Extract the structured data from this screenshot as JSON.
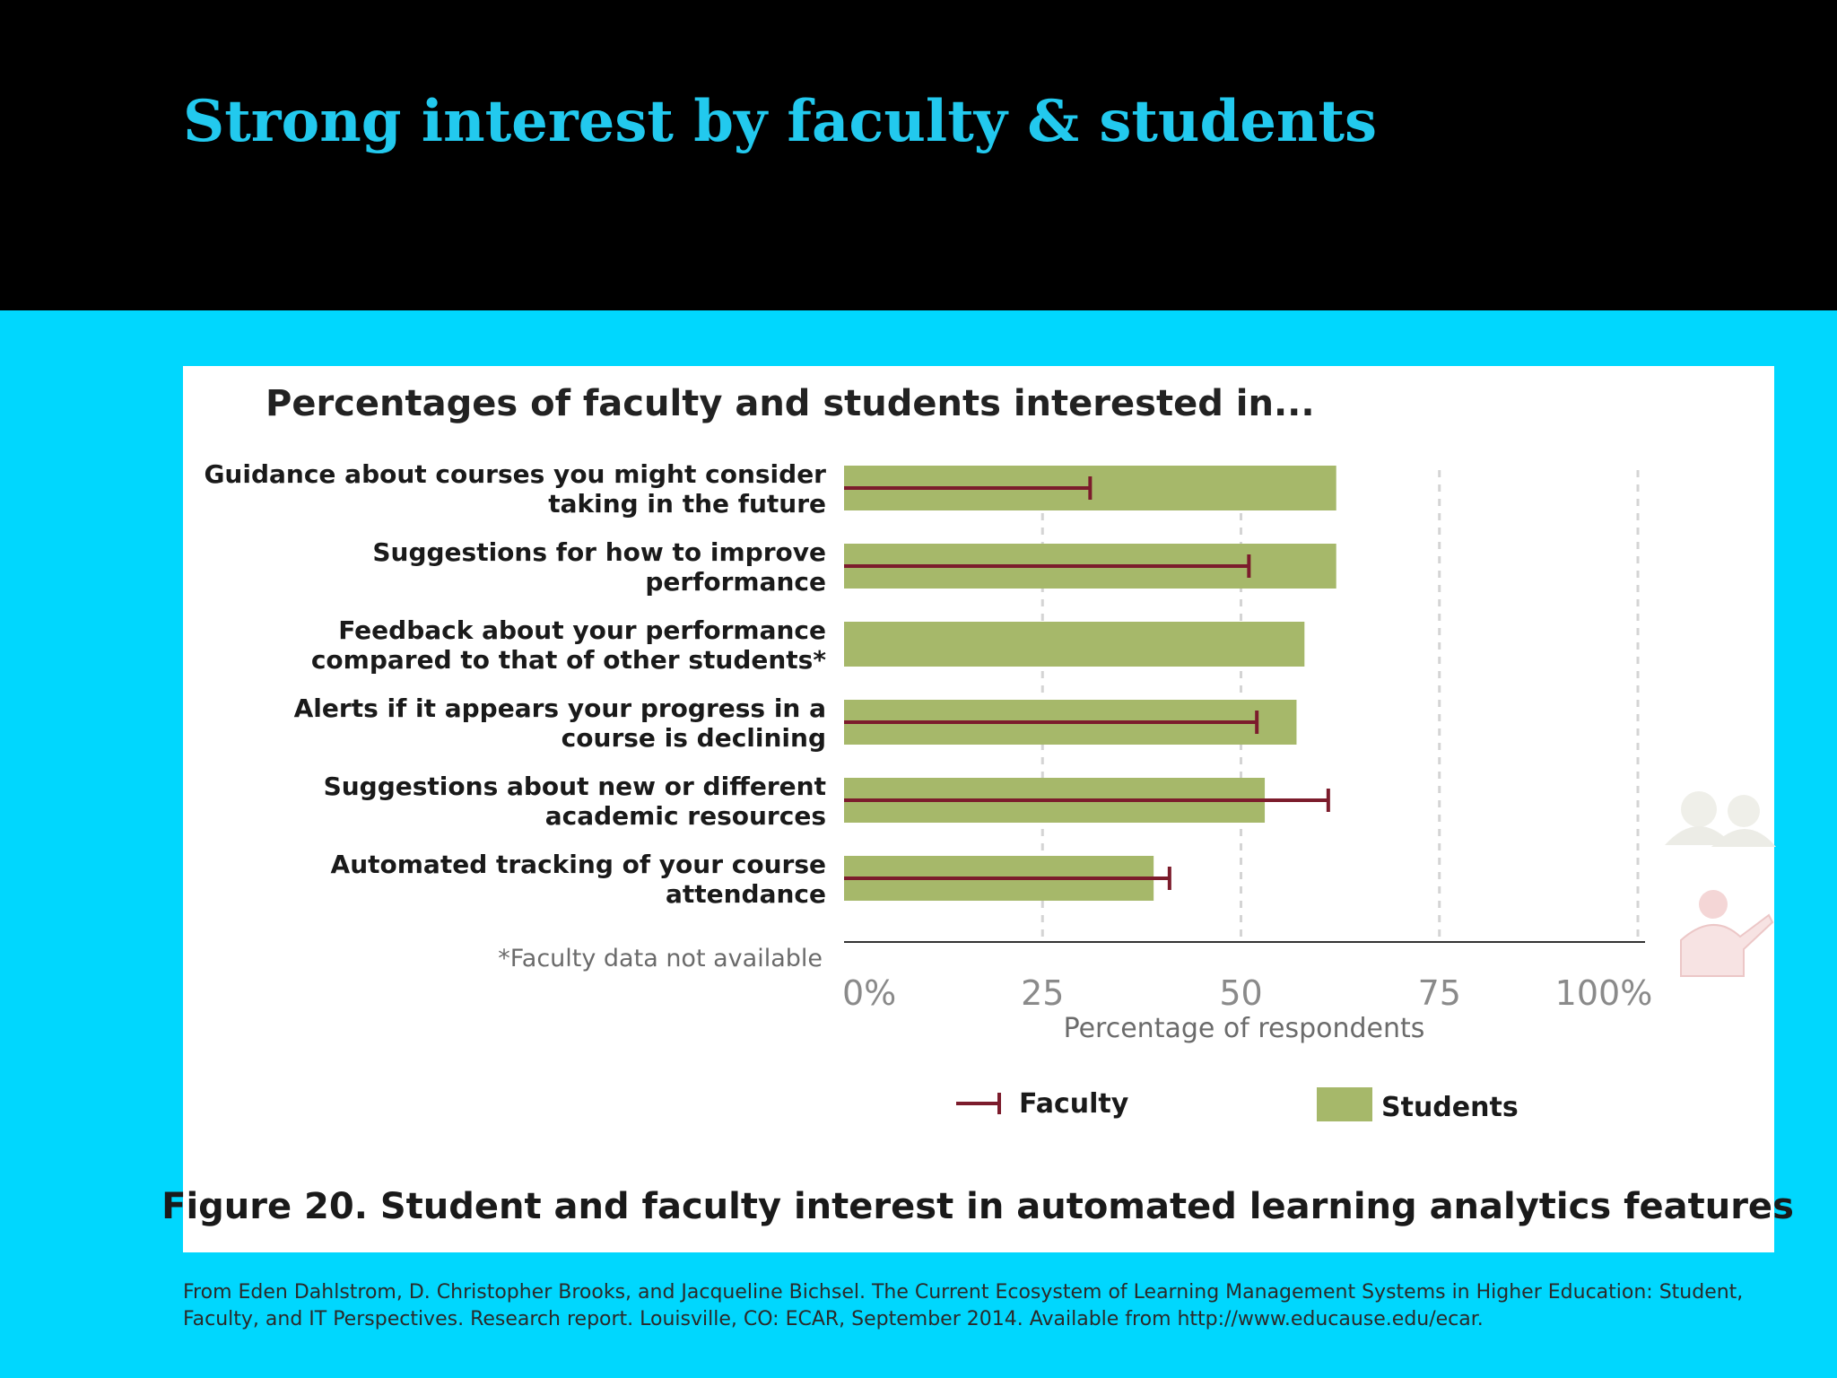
{
  "slide": {
    "title": "Strong interest by faculty & students",
    "citation": "From Eden Dahlstrom, D. Christopher Brooks, and Jacqueline Bichsel. The Current Ecosystem of Learning Management Systems in Higher Education: Student, Faculty, and IT Perspectives. Research report. Louisville, CO: ECAR, September 2014. Available from http://www.educause.edu/ecar.",
    "colors": {
      "top_band": "#000000",
      "bottom_band": "#00d7fe",
      "title": "#22c9ee"
    }
  },
  "chart_data": {
    "type": "bar",
    "orientation": "horizontal",
    "title": "Percentages of faculty and students interested in...",
    "categories": [
      [
        "Guidance about courses you might consider",
        "taking in the future"
      ],
      [
        "Suggestions for how to improve",
        "performance"
      ],
      [
        "Feedback about your performance",
        "compared to that of other students*"
      ],
      [
        "Alerts if it appears your progress in a",
        "course is declining"
      ],
      [
        "Suggestions about new or different",
        "academic resources"
      ],
      [
        "Automated tracking of your course",
        "attendance"
      ]
    ],
    "series": [
      {
        "name": "Students",
        "mark": "bar",
        "color": "#a6b86a",
        "values": [
          62,
          62,
          58,
          57,
          53,
          39
        ]
      },
      {
        "name": "Faculty",
        "mark": "line",
        "color": "#7c1c2c",
        "values": [
          31,
          51,
          null,
          52,
          61,
          41
        ]
      }
    ],
    "xlim": [
      0,
      100
    ],
    "ticks": [
      0,
      25,
      50,
      75,
      100
    ],
    "tick_labels": [
      "0%",
      "25",
      "50",
      "75",
      "100%"
    ],
    "xlabel": "Percentage of respondents",
    "footnote": "*Faculty data not available",
    "legend": {
      "placement": "bottom",
      "items": [
        "Faculty",
        "Students"
      ]
    },
    "grid": "vertical dashed",
    "caption": "Figure 20. Student and faculty interest in automated learning analytics features"
  }
}
